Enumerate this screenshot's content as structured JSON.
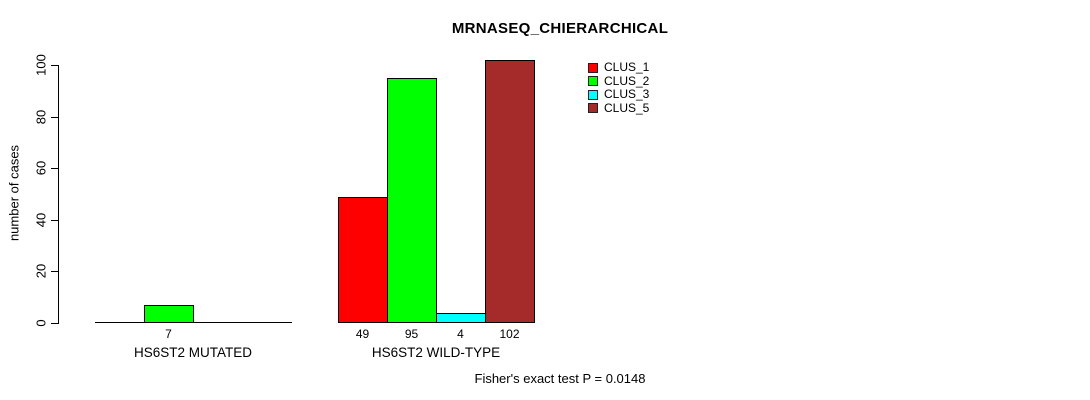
{
  "chart_data": {
    "type": "bar",
    "title": "MRNASEQ_CHIERARCHICAL",
    "ylabel": "number of cases",
    "xlabel": "",
    "ylim": [
      0,
      100
    ],
    "yticks": [
      0,
      20,
      40,
      60,
      80,
      100
    ],
    "grid": false,
    "legend_position": "top-right",
    "series": [
      {
        "name": "CLUS_1",
        "color": "#FF0000"
      },
      {
        "name": "CLUS_2",
        "color": "#00FF00"
      },
      {
        "name": "CLUS_3",
        "color": "#00FFFF"
      },
      {
        "name": "CLUS_5",
        "color": "#A52A2A"
      }
    ],
    "categories": [
      "HS6ST2 MUTATED",
      "HS6ST2 WILD-TYPE"
    ],
    "groups": [
      {
        "label": "HS6ST2 MUTATED",
        "values": [
          0,
          7,
          0,
          0
        ],
        "value_labels": [
          "",
          "7",
          "",
          ""
        ]
      },
      {
        "label": "HS6ST2 WILD-TYPE",
        "values": [
          49,
          95,
          4,
          102
        ],
        "value_labels": [
          "49",
          "95",
          "4",
          "102"
        ]
      }
    ],
    "annotation": "Fisher's exact test P = 0.0148"
  }
}
